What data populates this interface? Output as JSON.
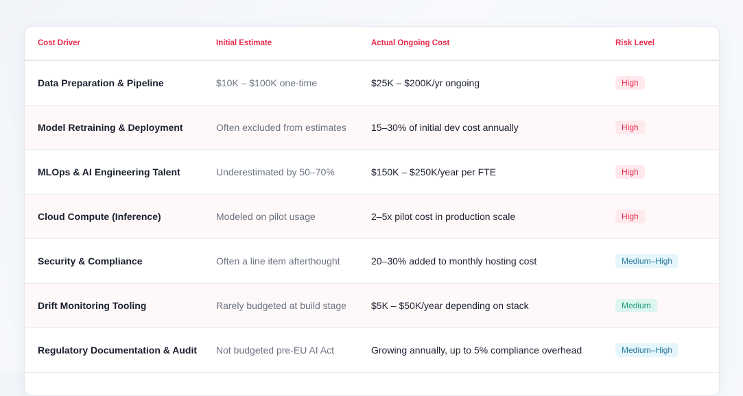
{
  "table": {
    "headers": [
      "Cost Driver",
      "Initial Estimate",
      "Actual Ongoing Cost",
      "Risk Level"
    ],
    "rows": [
      {
        "driver": "Data Preparation & Pipeline",
        "initial": "$10K – $100K one-time",
        "actual": "$25K – $200K/yr ongoing",
        "risk": "High",
        "risk_kind": "high"
      },
      {
        "driver": "Model Retraining & Deployment",
        "initial": "Often excluded from estimates",
        "actual": "15–30% of initial dev cost annually",
        "risk": "High",
        "risk_kind": "high"
      },
      {
        "driver": "MLOps & AI Engineering Talent",
        "initial": "Underestimated by 50–70%",
        "actual": "$150K – $250K/year per FTE",
        "risk": "High",
        "risk_kind": "high"
      },
      {
        "driver": "Cloud Compute (Inference)",
        "initial": "Modeled on pilot usage",
        "actual": "2–5x pilot cost in production scale",
        "risk": "High",
        "risk_kind": "high"
      },
      {
        "driver": "Security & Compliance",
        "initial": "Often a line item afterthought",
        "actual": "20–30% added to monthly hosting cost",
        "risk": "Medium–High",
        "risk_kind": "medium-high"
      },
      {
        "driver": "Drift Monitoring Tooling",
        "initial": "Rarely budgeted at build stage",
        "actual": "$5K – $50K/year depending on stack",
        "risk": "Medium",
        "risk_kind": "medium"
      },
      {
        "driver": "Regulatory Documentation & Audit",
        "initial": "Not budgeted pre-EU AI Act",
        "actual": "Growing annually, up to 5% compliance overhead",
        "risk": "Medium–High",
        "risk_kind": "medium-high"
      }
    ]
  },
  "colors": {
    "header_text": "#e8294a",
    "alt_row_bg": "#fff8f9",
    "badge_high_bg": "#ffe9ed",
    "badge_high_text": "#e8294a",
    "badge_medium_high_bg": "#e5f6fc",
    "badge_medium_high_text": "#2a7a99",
    "badge_medium_bg": "#dcf5ee",
    "badge_medium_text": "#1f9a78"
  }
}
